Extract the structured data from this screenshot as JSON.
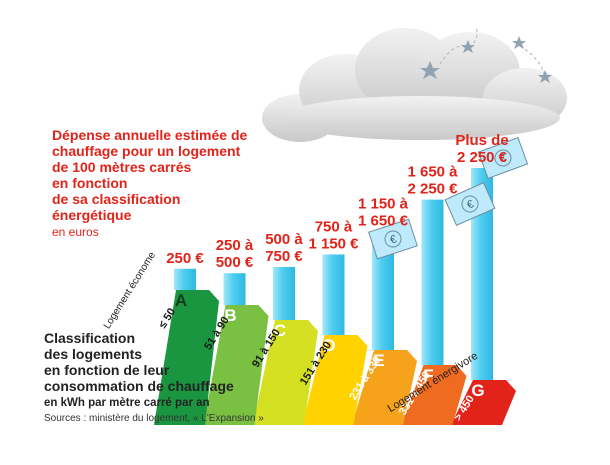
{
  "chart_data": {
    "type": "bar",
    "title_lines": [
      "Dépense annuelle estimée de",
      "chauffage pour un logement",
      "de 100 mètres carrés",
      "en fonction",
      "de sa classification",
      "énergétique"
    ],
    "title_unit": "en euros",
    "categories": [
      "A",
      "B",
      "C",
      "D",
      "E",
      "F",
      "G"
    ],
    "bar_labels": [
      [
        "250 €"
      ],
      [
        "250 à",
        "500 €"
      ],
      [
        "500 à",
        "750 €"
      ],
      [
        "750 à",
        "1 150 €"
      ],
      [
        "1 150 à",
        "1 650 €"
      ],
      [
        "1 650 à",
        "2 250 €"
      ],
      [
        "Plus de",
        "2 250 €"
      ]
    ],
    "values": [
      250,
      375,
      625,
      950,
      1400,
      1950,
      2500
    ],
    "consumption_ranges": [
      "≤ 50",
      "51 à 90",
      "91 à 150",
      "151 à 230",
      "231 à 330",
      "331 à 450",
      "> 450"
    ],
    "class_colors": [
      "#1a9641",
      "#7ac143",
      "#d4e021",
      "#ffd200",
      "#f7a21b",
      "#ef6b1f",
      "#e2231a"
    ],
    "bar_color": "#5bd4f2",
    "scale_label_low": "Logement économe",
    "scale_label_high": "Logement énergivore",
    "classification_lines": [
      "Classification",
      "des logements",
      "en fonction de leur",
      "consommation de chauffage"
    ],
    "classification_unit": "en kWh par mètre carré par an",
    "source": "Sources : ministère du logement, « L'Expansion »",
    "grid": false,
    "legend": "none"
  }
}
